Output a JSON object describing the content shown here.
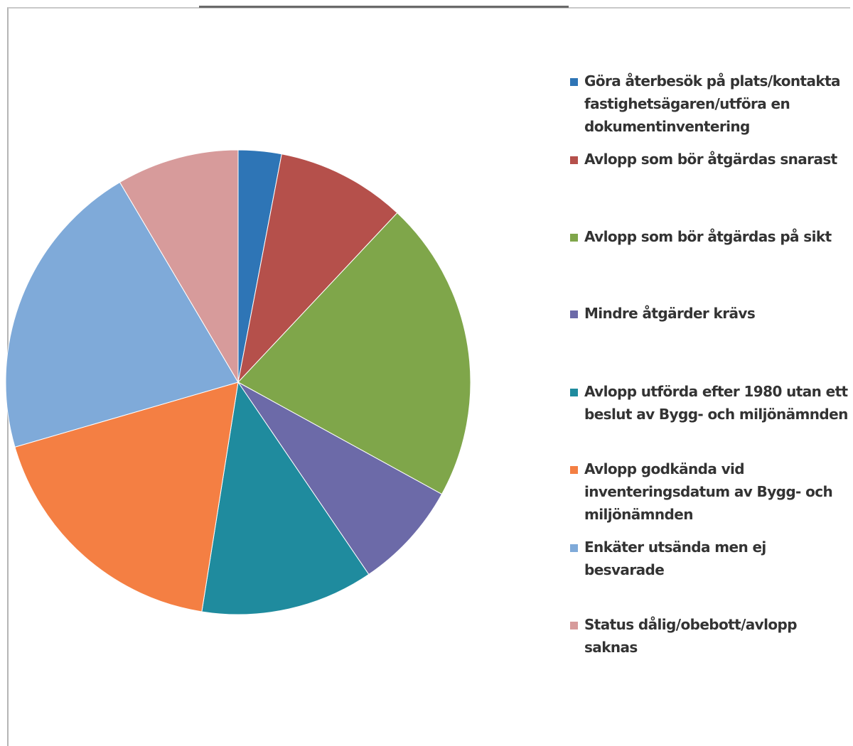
{
  "chart_data": {
    "type": "pie",
    "slices": [
      {
        "label": "Göra återbesök på plats/kontakta fastighetsägaren/utföra en dokumentinventering",
        "value": 3,
        "color": "#2e75b6"
      },
      {
        "label": "Avlopp som bör åtgärdas snarast",
        "value": 9,
        "color": "#b5504b"
      },
      {
        "label": "Avlopp som bör åtgärdas på sikt",
        "value": 21,
        "color": "#7fa64a"
      },
      {
        "label": "Mindre åtgärder krävs",
        "value": 7.5,
        "color": "#6c6aa8"
      },
      {
        "label": "Avlopp utförda efter 1980 utan ett beslut av Bygg- och miljönämnden",
        "value": 12,
        "color": "#1f8b9e"
      },
      {
        "label": "Avlopp godkända vid inventeringsdatum av Bygg- och miljönämnden",
        "value": 18,
        "color": "#f47f43"
      },
      {
        "label": "Enkäter utsända men ej besvarade",
        "value": 21,
        "color": "#7faad9"
      },
      {
        "label": "Status dålig/obebott/avlopp saknas",
        "value": 8.5,
        "color": "#d79b9b"
      }
    ],
    "legend_position": "right",
    "start_angle": "top, clockwise"
  }
}
